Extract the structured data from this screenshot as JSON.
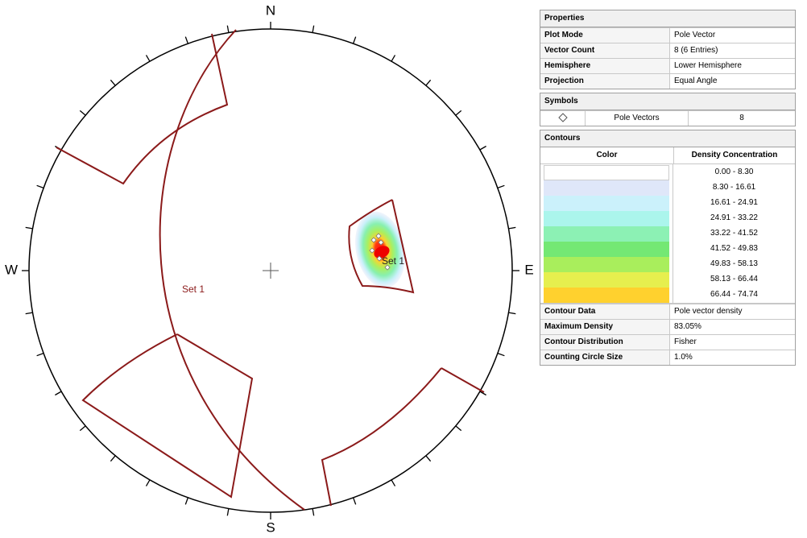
{
  "stereonet": {
    "north": "N",
    "south": "S",
    "west": "W",
    "east": "E",
    "set_label_plane": "Set 1",
    "set_label_pole": "Set 1"
  },
  "properties": {
    "title": "Properties",
    "rows": [
      [
        "Plot Mode",
        "Pole Vector"
      ],
      [
        "Vector Count",
        "8 (6 Entries)"
      ],
      [
        "Hemisphere",
        "Lower Hemisphere"
      ],
      [
        "Projection",
        "Equal Angle"
      ]
    ]
  },
  "symbols": {
    "title": "Symbols",
    "rows": [
      [
        "Pole Vectors",
        "8"
      ]
    ]
  },
  "contours": {
    "title": "Contours",
    "color_header": "Color",
    "density_header": "Density Concentration",
    "legend": [
      {
        "color": "#ffffff",
        "range": "0.00 - 8.30"
      },
      {
        "color": "#dfe7f9",
        "range": "8.30 - 16.61"
      },
      {
        "color": "#cbf1fb",
        "range": "16.61 - 24.91"
      },
      {
        "color": "#abf5ec",
        "range": "24.91 - 33.22"
      },
      {
        "color": "#8cf1b4",
        "range": "33.22 - 41.52"
      },
      {
        "color": "#74e874",
        "range": "41.52 - 49.83"
      },
      {
        "color": "#a9ee5c",
        "range": "49.83 - 58.13"
      },
      {
        "color": "#e6ef4e",
        "range": "58.13 - 66.44"
      },
      {
        "color": "#ffd12e",
        "range": "66.44 - 74.74"
      }
    ],
    "rows": [
      [
        "Contour Data",
        "Pole vector density"
      ],
      [
        "Maximum Density",
        "83.05%"
      ],
      [
        "Contour Distribution",
        "Fisher"
      ],
      [
        "Counting Circle Size",
        "1.0%"
      ]
    ]
  }
}
